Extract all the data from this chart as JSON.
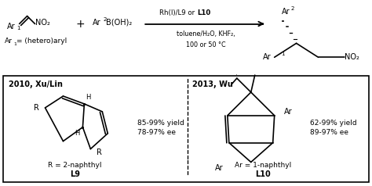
{
  "bg_color": "#ffffff",
  "text_color": "#000000",
  "fig_w": 4.74,
  "fig_h": 2.38,
  "dpi": 100,
  "conditions1": "Rh(I)/L9 or ",
  "conditions1b": "L10",
  "conditions2": "toluene/H₂O, KHF₂,",
  "conditions3": "100 or 50 °C",
  "subtitle": "Ar¹= (hetero)aryl",
  "left_header": "2010, Xu/Lin",
  "right_header": "2013, Wu",
  "left_yield": "85-99% yield\n78-97% ee",
  "right_yield": "62-99% yield\n89-97% ee",
  "left_caption": "R = 2-naphthyl",
  "left_name": "L9",
  "right_caption": "Ar = 1-naphthyl",
  "right_name": "L10"
}
